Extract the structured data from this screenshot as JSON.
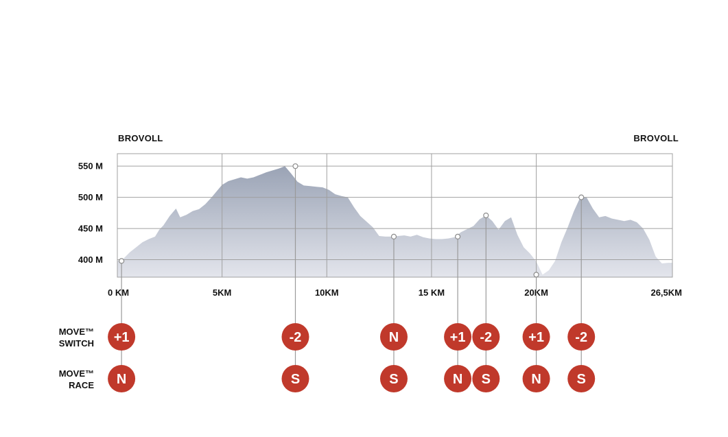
{
  "colors": {
    "badge": "#c0392b",
    "area_top": "#9aa3b5",
    "area_bottom": "#e3e5ec",
    "grid": "#a0a0a0",
    "connector": "#9a9a9a"
  },
  "chart_data": {
    "type": "area",
    "start_label": "BROVOLL",
    "end_label": "BROVOLL",
    "xlabel": "",
    "ylabel": "",
    "xlim": [
      0,
      26.5
    ],
    "ylim": [
      372,
      570
    ],
    "y_ticks": [
      {
        "value": 400,
        "label": "400 M"
      },
      {
        "value": 450,
        "label": "450 M"
      },
      {
        "value": 500,
        "label": "500 M"
      },
      {
        "value": 550,
        "label": "550 M"
      }
    ],
    "x_ticks": [
      {
        "value": 0,
        "label": "0 KM"
      },
      {
        "value": 5,
        "label": "5KM"
      },
      {
        "value": 10,
        "label": "10KM"
      },
      {
        "value": 15,
        "label": "15 KM"
      },
      {
        "value": 20,
        "label": "20KM"
      },
      {
        "value": 26.5,
        "label": "26,5KM"
      }
    ],
    "grid": true,
    "profile": {
      "x": [
        0,
        0.3,
        0.6,
        0.9,
        1.2,
        1.5,
        1.8,
        2.0,
        2.2,
        2.5,
        2.8,
        3.0,
        3.3,
        3.6,
        3.9,
        4.2,
        4.5,
        4.8,
        5.0,
        5.3,
        5.6,
        5.9,
        6.2,
        6.5,
        6.8,
        7.1,
        7.4,
        7.7,
        8.0,
        8.3,
        8.6,
        8.9,
        9.2,
        9.5,
        9.8,
        10.1,
        10.4,
        10.7,
        11.0,
        11.3,
        11.6,
        11.9,
        12.2,
        12.5,
        12.8,
        13.1,
        13.4,
        13.7,
        14.0,
        14.3,
        14.6,
        14.9,
        15.2,
        15.5,
        15.8,
        16.1,
        16.4,
        16.7,
        17.0,
        17.3,
        17.6,
        17.9,
        18.2,
        18.5,
        18.8,
        19.1,
        19.4,
        19.7,
        20.0,
        20.3,
        20.6,
        20.9,
        21.2,
        21.5,
        21.8,
        22.1,
        22.4,
        22.7,
        23.0,
        23.3,
        23.6,
        23.9,
        24.2,
        24.5,
        24.8,
        25.1,
        25.4,
        25.7,
        26.0,
        26.3,
        26.5
      ],
      "y": [
        398,
        402,
        412,
        420,
        428,
        433,
        437,
        448,
        455,
        470,
        482,
        468,
        472,
        478,
        481,
        489,
        500,
        512,
        520,
        526,
        529,
        532,
        530,
        532,
        536,
        540,
        543,
        546,
        550,
        538,
        525,
        519,
        518,
        517,
        516,
        512,
        505,
        502,
        500,
        484,
        470,
        461,
        452,
        438,
        437,
        437,
        438,
        439,
        437,
        440,
        436,
        434,
        433,
        433,
        434,
        436,
        444,
        449,
        454,
        465,
        471,
        462,
        448,
        462,
        468,
        440,
        420,
        410,
        397,
        376,
        383,
        398,
        428,
        452,
        478,
        500,
        500,
        482,
        468,
        470,
        466,
        464,
        462,
        464,
        460,
        450,
        432,
        405,
        394,
        395,
        395
      ]
    },
    "markers": [
      {
        "x": 0.2,
        "elevation": 398,
        "switch": "+1",
        "race": "N"
      },
      {
        "x": 8.5,
        "elevation": 550,
        "switch": "-2",
        "race": "S"
      },
      {
        "x": 13.2,
        "elevation": 437,
        "switch": "N",
        "race": "S"
      },
      {
        "x": 16.25,
        "elevation": 437,
        "switch": "+1",
        "race": "N"
      },
      {
        "x": 17.6,
        "elevation": 471,
        "switch": "-2",
        "race": "S"
      },
      {
        "x": 20.0,
        "elevation": 376,
        "switch": "+1",
        "race": "N"
      },
      {
        "x": 22.15,
        "elevation": 500,
        "switch": "-2",
        "race": "S"
      }
    ]
  },
  "rows": {
    "switch": {
      "line1": "MOVE™",
      "line2": "SWITCH"
    },
    "race": {
      "line1": "MOVE™",
      "line2": "RACE"
    }
  }
}
